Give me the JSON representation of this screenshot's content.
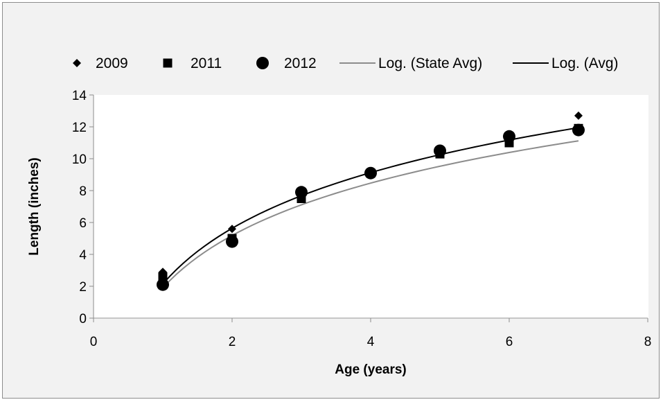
{
  "chart_data": {
    "type": "scatter",
    "title": "",
    "xlabel": "Age (years)",
    "ylabel": "Length (inches)",
    "xlim": [
      0,
      8
    ],
    "ylim": [
      0,
      14
    ],
    "xticks": [
      0,
      2,
      4,
      6,
      8
    ],
    "yticks": [
      0,
      2,
      4,
      6,
      8,
      10,
      12,
      14
    ],
    "grid": false,
    "legend_position": "top",
    "series": [
      {
        "name": "2009",
        "marker": "diamond",
        "color": "#000000",
        "x": [
          1,
          2,
          3,
          4,
          5,
          6,
          7
        ],
        "y": [
          2.9,
          5.6,
          7.9,
          9.1,
          10.4,
          11.5,
          12.7
        ]
      },
      {
        "name": "2011",
        "marker": "square",
        "color": "#000000",
        "x": [
          1,
          2,
          3,
          4,
          5,
          6,
          7
        ],
        "y": [
          2.6,
          5.0,
          7.5,
          9.1,
          10.3,
          11.0,
          11.9
        ]
      },
      {
        "name": "2012",
        "marker": "circle",
        "color": "#000000",
        "x": [
          1,
          2,
          3,
          4,
          5,
          6,
          7
        ],
        "y": [
          2.1,
          4.8,
          7.9,
          9.1,
          10.5,
          11.4,
          11.8
        ]
      }
    ],
    "trendlines": [
      {
        "name": "Log. (State Avg)",
        "type": "logarithmic",
        "color": "#8c8c8c",
        "x": [
          1,
          2,
          3,
          4,
          5,
          6,
          7
        ],
        "y": [
          2.0,
          5.0,
          7.1,
          8.5,
          9.6,
          10.4,
          11.1
        ]
      },
      {
        "name": "Log. (Avg)",
        "type": "logarithmic",
        "color": "#000000",
        "x": [
          1,
          2,
          3,
          4,
          5,
          6,
          7
        ],
        "y": [
          2.3,
          5.3,
          7.8,
          9.1,
          10.3,
          11.2,
          11.95
        ]
      }
    ]
  }
}
